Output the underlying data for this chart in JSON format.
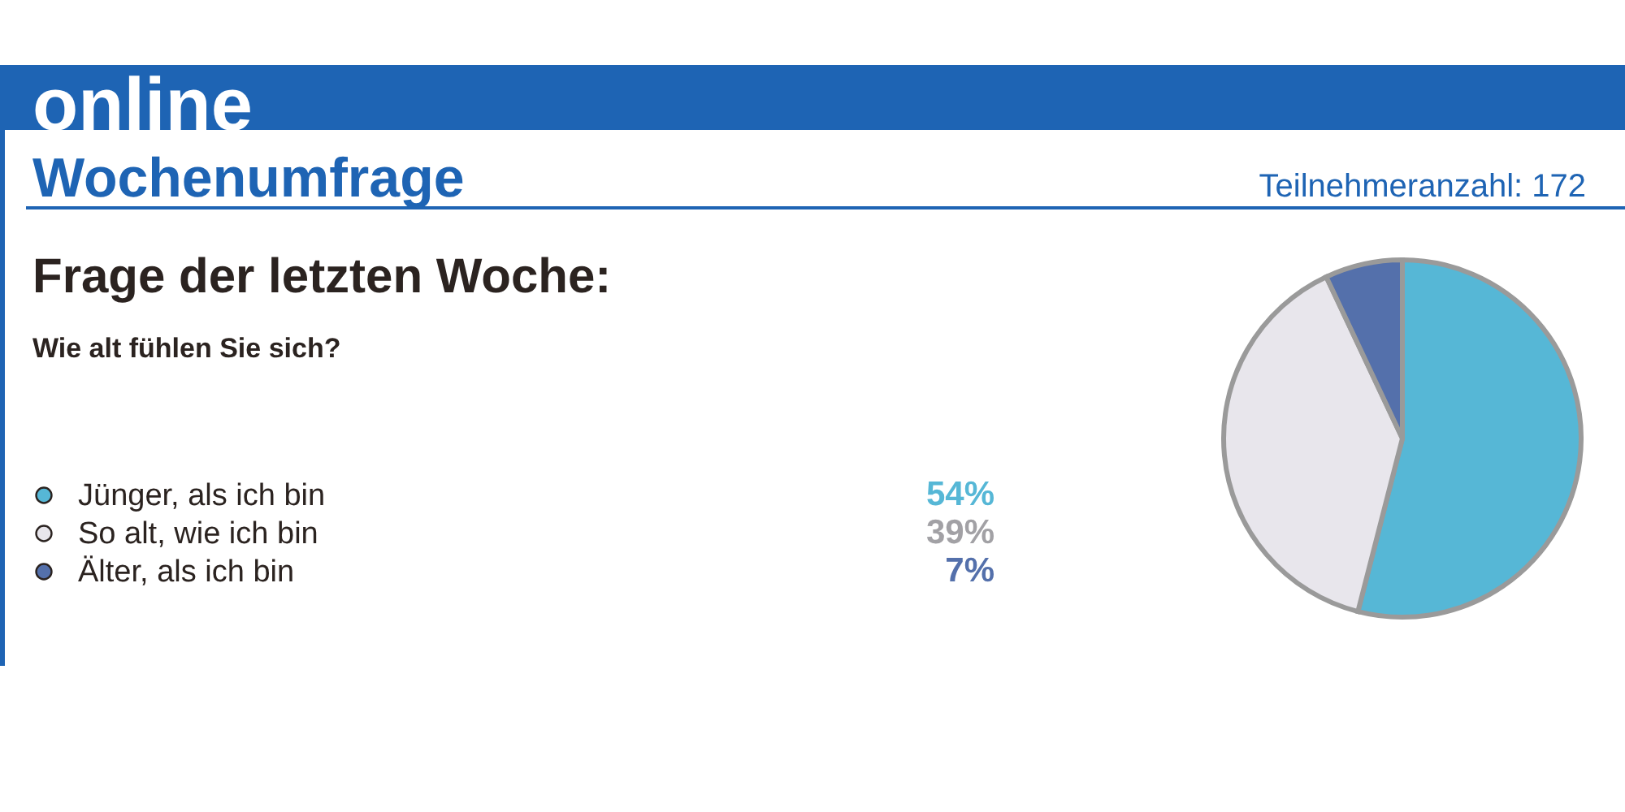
{
  "chart_data": {
    "type": "pie",
    "title": "Frage der letzten Woche:",
    "subtitle": "Wie alt fühlen Sie sich?",
    "categories": [
      "Jünger, als ich bin",
      "So alt, wie ich bin",
      "Älter, als ich bin"
    ],
    "values": [
      54,
      39,
      7
    ],
    "colors": [
      "#56b7d6",
      "#e8e6ec",
      "#5470ab"
    ],
    "value_labels": [
      "54%",
      "39%",
      "7%"
    ],
    "legend": "left",
    "annotations": [
      "online",
      "Wochenumfrage",
      "Teilnehmeranzahl: 172"
    ]
  }
}
